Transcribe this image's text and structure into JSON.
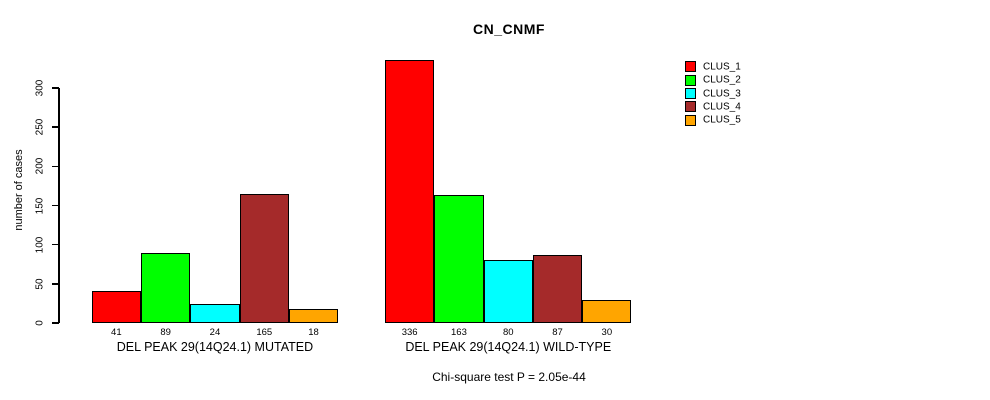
{
  "chart_data": {
    "type": "bar",
    "title": "CN_CNMF",
    "ylabel": "number of cases",
    "ylim": [
      0,
      300
    ],
    "yticks": [
      0,
      50,
      100,
      150,
      200,
      250,
      300
    ],
    "grid": false,
    "categories": [
      "DEL PEAK 29(14Q24.1) MUTATED",
      "DEL PEAK 29(14Q24.1) WILD-TYPE"
    ],
    "series": [
      {
        "name": "CLUS_1",
        "color": "#FF0000",
        "values": [
          41,
          336
        ]
      },
      {
        "name": "CLUS_2",
        "color": "#00FF00",
        "values": [
          89,
          163
        ]
      },
      {
        "name": "CLUS_3",
        "color": "#00FFFF",
        "values": [
          24,
          80
        ]
      },
      {
        "name": "CLUS_4",
        "color": "#A52A2A",
        "values": [
          165,
          87
        ]
      },
      {
        "name": "CLUS_5",
        "color": "#FFA500",
        "values": [
          18,
          30
        ]
      }
    ],
    "bar_value_labels_shown": true,
    "annotation": "Chi-square test P = 2.05e-44",
    "legend_position": "right",
    "axis_color": "#000000",
    "background": "#FFFFFF"
  }
}
